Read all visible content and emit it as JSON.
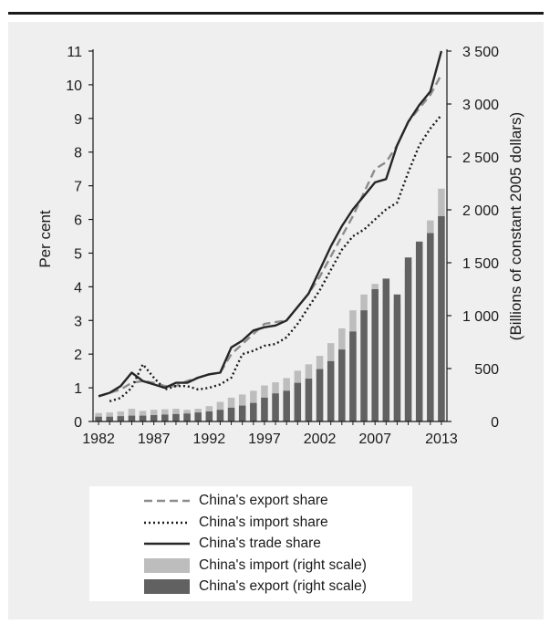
{
  "chart_data": {
    "type": "bar",
    "title": "",
    "xlabel": "",
    "ylabel": "Per cent",
    "y2label": "(Billions of constant 2005 dollars)",
    "ylim": [
      0,
      11
    ],
    "y2lim": [
      0,
      3500
    ],
    "yticks": [
      "0",
      "1",
      "2",
      "3",
      "4",
      "5",
      "6",
      "7",
      "8",
      "9",
      "10",
      "11"
    ],
    "y2ticks": [
      "0",
      "500",
      "1 000",
      "1 500",
      "2 000",
      "2 500",
      "3 000",
      "3 500"
    ],
    "xticks": [
      "1982",
      "1987",
      "1992",
      "1997",
      "2002",
      "2007",
      "2013"
    ],
    "grid": false,
    "legend_position": "bottom",
    "years": [
      1982,
      1983,
      1984,
      1985,
      1986,
      1987,
      1988,
      1989,
      1990,
      1991,
      1992,
      1993,
      1994,
      1995,
      1996,
      1997,
      1998,
      1999,
      2000,
      2001,
      2002,
      2003,
      2004,
      2005,
      2006,
      2007,
      2008,
      2009,
      2010,
      2011,
      2012,
      2013
    ],
    "series": [
      {
        "name": "China's export share",
        "kind": "line",
        "style": "dashed",
        "axis": "left",
        "color": "#8c8c8c",
        "values": [
          0.75,
          0.85,
          0.95,
          1.15,
          1.2,
          1.15,
          1.05,
          1.05,
          1.2,
          1.3,
          1.4,
          1.45,
          2.0,
          2.3,
          2.6,
          2.9,
          2.95,
          3.0,
          3.4,
          3.8,
          4.3,
          4.9,
          5.5,
          6.1,
          6.8,
          7.5,
          7.7,
          8.2,
          8.9,
          9.3,
          9.7,
          10.3
        ]
      },
      {
        "name": "China's import share",
        "kind": "line",
        "style": "dotted",
        "axis": "left",
        "color": "#1a1a1a",
        "values": [
          null,
          0.6,
          0.7,
          1.0,
          1.7,
          1.3,
          0.95,
          1.05,
          1.05,
          0.95,
          1.0,
          1.1,
          1.3,
          2.0,
          2.1,
          2.25,
          2.3,
          2.5,
          2.9,
          3.4,
          3.9,
          4.5,
          5.1,
          5.5,
          5.7,
          6.0,
          6.3,
          6.5,
          7.4,
          8.2,
          8.7,
          9.1
        ]
      },
      {
        "name": "China's trade share",
        "kind": "line",
        "style": "solid",
        "axis": "left",
        "color": "#262626",
        "values": [
          0.75,
          0.85,
          1.05,
          1.45,
          1.2,
          1.1,
          1.0,
          1.15,
          1.15,
          1.3,
          1.4,
          1.45,
          2.2,
          2.4,
          2.7,
          2.8,
          2.85,
          3.0,
          3.4,
          3.8,
          4.5,
          5.2,
          5.8,
          6.3,
          6.7,
          7.1,
          7.2,
          8.2,
          8.9,
          9.4,
          9.8,
          11.0
        ]
      },
      {
        "name": "China's import (right scale)",
        "kind": "bar",
        "axis": "right",
        "color": "#bdbdbd",
        "values": [
          80,
          85,
          95,
          120,
          100,
          110,
          115,
          120,
          110,
          120,
          145,
          185,
          225,
          255,
          290,
          340,
          370,
          410,
          480,
          540,
          620,
          740,
          880,
          1050,
          1200,
          1300,
          1150,
          1100,
          1450,
          1650,
          1900,
          2200
        ]
      },
      {
        "name": "China's export (right scale)",
        "kind": "bar",
        "axis": "right",
        "color": "#616161",
        "values": [
          45,
          45,
          50,
          55,
          55,
          60,
          65,
          70,
          75,
          85,
          95,
          110,
          130,
          150,
          175,
          225,
          265,
          290,
          365,
          405,
          495,
          570,
          680,
          850,
          1050,
          1250,
          1350,
          1200,
          1550,
          1700,
          1780,
          1940
        ]
      }
    ]
  }
}
